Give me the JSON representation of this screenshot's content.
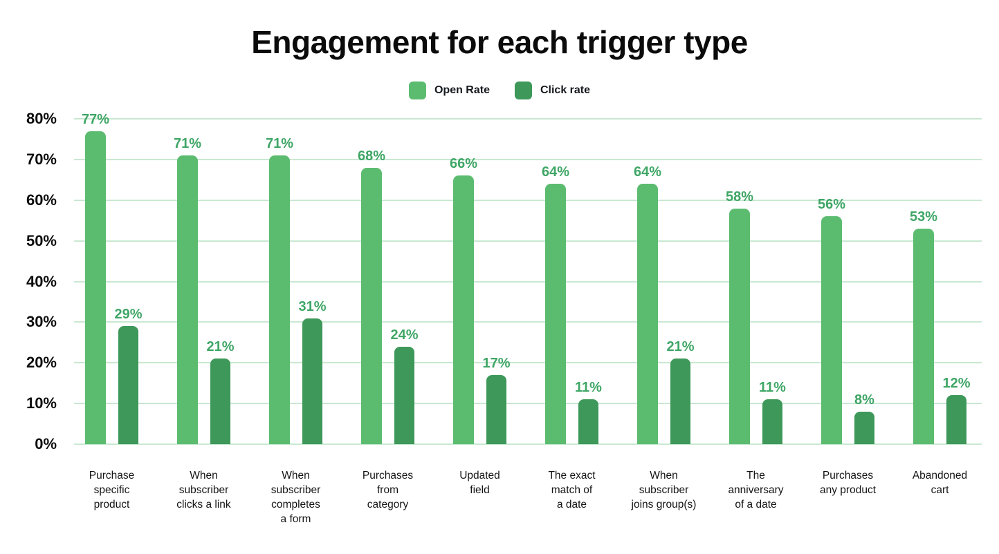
{
  "title": "Engagement for each trigger type",
  "colors": {
    "open_rate": "#5BBC70",
    "click_rate": "#3D9859",
    "value_label": "#3FA666",
    "gridline": "#C9E8D2",
    "title_text": "#0b0b0b",
    "tick_text": "#0d0d0d",
    "category_text": "#141414",
    "background": "#ffffff"
  },
  "chart_data": {
    "type": "bar",
    "title": "Engagement for each trigger type",
    "xlabel": "",
    "ylabel": "",
    "ylim": [
      0,
      80
    ],
    "ytick_step": 10,
    "ytick_labels": [
      "0%",
      "10%",
      "20%",
      "30%",
      "40%",
      "50%",
      "60%",
      "70%",
      "80%"
    ],
    "grid": true,
    "legend_position": "top",
    "categories": [
      "Purchase\nspecific\nproduct",
      "When\nsubscriber\nclicks a link",
      "When\nsubscriber\ncompletes\na form",
      "Purchases\nfrom\ncategory",
      "Updated\nfield",
      "The exact\nmatch of\na date",
      "When\nsubscriber\njoins group(s)",
      "The\nanniversary\nof a date",
      "Purchases\nany product",
      "Abandoned\ncart"
    ],
    "series": [
      {
        "name": "Open Rate",
        "color": "#5BBC70",
        "values": [
          77,
          71,
          71,
          68,
          66,
          64,
          64,
          58,
          56,
          53
        ],
        "value_labels": [
          "77%",
          "71%",
          "71%",
          "68%",
          "66%",
          "64%",
          "64%",
          "58%",
          "56%",
          "53%"
        ]
      },
      {
        "name": "Click rate",
        "color": "#3D9859",
        "values": [
          29,
          21,
          31,
          24,
          17,
          11,
          21,
          11,
          8,
          12
        ],
        "value_labels": [
          "29%",
          "21%",
          "31%",
          "24%",
          "17%",
          "11%",
          "21%",
          "11%",
          "8%",
          "12%"
        ]
      }
    ]
  }
}
